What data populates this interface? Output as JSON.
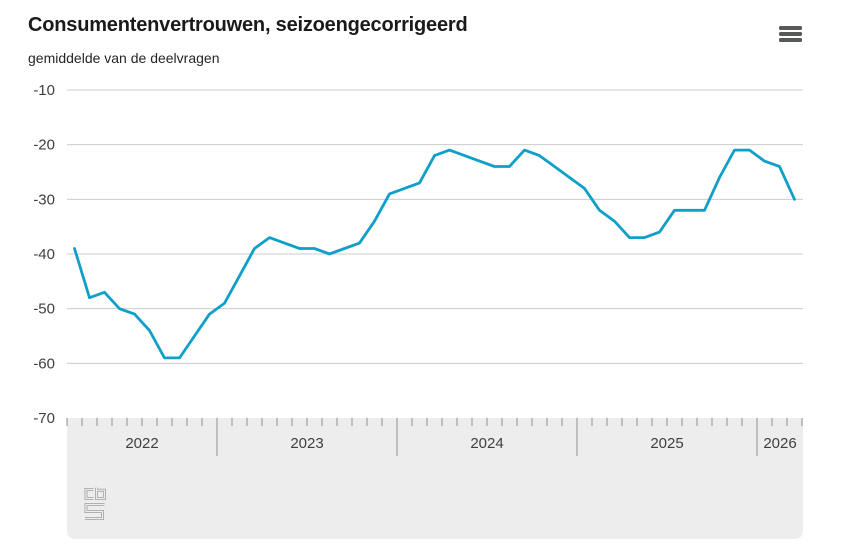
{
  "header": {
    "title": "Consumentenvertrouwen, seizoengecorrigeerd",
    "subtitle": "gemiddelde van de deelvragen"
  },
  "colors": {
    "line": "#0f9fc8",
    "grid": "#cccccc",
    "band": "#ededed",
    "tick": "#8f8f8f",
    "axis_text": "#404040",
    "title_text": "#1a1a1a",
    "icon": "#58595b",
    "logo": "#a8a8a8",
    "background": "#ffffff"
  },
  "chart_data": {
    "type": "line",
    "title": "Consumentenvertrouwen, seizoengecorrigeerd",
    "subtitle": "gemiddelde van de deelvragen",
    "grid": "horizontal",
    "legend": "none",
    "ylim": [
      -70,
      -10
    ],
    "y_ticks": [
      -10,
      -20,
      -30,
      -40,
      -50,
      -60,
      -70
    ],
    "x_tick_years": [
      "2022",
      "2023",
      "2024",
      "2025",
      "2026"
    ],
    "series": [
      {
        "months": [
          "2022-03",
          "2022-04",
          "2022-05",
          "2022-06",
          "2022-07",
          "2022-08",
          "2022-09",
          "2022-10",
          "2022-11",
          "2022-12",
          "2023-01",
          "2023-02",
          "2023-03",
          "2023-04",
          "2023-05",
          "2023-06",
          "2023-07",
          "2023-08",
          "2023-09",
          "2023-10",
          "2023-11",
          "2023-12",
          "2024-01",
          "2024-02",
          "2024-03",
          "2024-04",
          "2024-05",
          "2024-06",
          "2024-07",
          "2024-08",
          "2024-09",
          "2024-10",
          "2024-11",
          "2024-12",
          "2025-01",
          "2025-02",
          "2025-03",
          "2025-04",
          "2025-05",
          "2025-06",
          "2025-07",
          "2025-08",
          "2025-09",
          "2025-10",
          "2025-11",
          "2025-12",
          "2026-01",
          "2026-02",
          "2026-03"
        ],
        "values": [
          -39,
          -48,
          -47,
          -50,
          -51,
          -54,
          -59,
          -59,
          -55,
          -51,
          -49,
          -44,
          -39,
          -37,
          -38,
          -39,
          -39,
          -40,
          -39,
          -38,
          -34,
          -29,
          -28,
          -27,
          -22,
          -21,
          -22,
          -23,
          -24,
          -24,
          -21,
          -22,
          -24,
          -26,
          -28,
          -32,
          -34,
          -37,
          -37,
          -36,
          -32,
          -32,
          -32,
          -26,
          -21,
          -21,
          -23,
          -24,
          -30
        ]
      }
    ]
  }
}
